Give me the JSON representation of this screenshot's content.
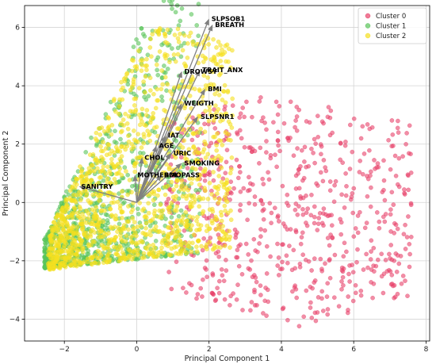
{
  "chart_data": {
    "type": "scatter",
    "title": "",
    "xlabel": "Principal Component 1",
    "ylabel": "Principal Component 2",
    "xlim": [
      -3.1,
      8.1
    ],
    "ylim": [
      -4.75,
      6.75
    ],
    "xticks": [
      -2,
      0,
      2,
      4,
      6,
      8
    ],
    "yticks": [
      -4,
      -2,
      0,
      2,
      4,
      6
    ],
    "grid": true,
    "legend_position": "top-right",
    "series": [
      {
        "name": "Cluster 0",
        "color": "#e8436b",
        "approx_count": 650,
        "center": [
          3.4,
          -1.4
        ],
        "x_range": [
          0.8,
          7.6
        ],
        "y_range": [
          -4.3,
          3.7
        ]
      },
      {
        "name": "Cluster 1",
        "color": "#5ac45a",
        "approx_count": 900,
        "center": [
          -0.9,
          -0.2
        ],
        "x_range": [
          -2.6,
          1.8
        ],
        "y_range": [
          -2.2,
          6.2
        ]
      },
      {
        "name": "Cluster 2",
        "color": "#f5e020",
        "approx_count": 1300,
        "center": [
          -0.5,
          0.6
        ],
        "x_range": [
          -2.4,
          2.7
        ],
        "y_range": [
          -2.3,
          5.9
        ]
      }
    ],
    "loading_vectors": {
      "origin": [
        0,
        0
      ],
      "color": "#808080",
      "vectors": [
        {
          "label": "SLPSOB1",
          "x": 2.0,
          "y": 6.3
        },
        {
          "label": "BREATH",
          "x": 2.1,
          "y": 6.1
        },
        {
          "label": "DROWSY",
          "x": 1.25,
          "y": 4.5
        },
        {
          "label": "TRAIT_ANX",
          "x": 1.75,
          "y": 4.55
        },
        {
          "label": "BMI",
          "x": 1.9,
          "y": 3.9
        },
        {
          "label": "WEIGTH",
          "x": 1.25,
          "y": 3.4
        },
        {
          "label": "SLPSNR1",
          "x": 1.7,
          "y": 2.95
        },
        {
          "label": "IAT",
          "x": 0.8,
          "y": 2.3
        },
        {
          "label": "AGE",
          "x": 0.55,
          "y": 1.95
        },
        {
          "label": "URIC",
          "x": 0.95,
          "y": 1.7
        },
        {
          "label": "CHOL",
          "x": 0.15,
          "y": 1.55
        },
        {
          "label": "SMOKING",
          "x": 1.25,
          "y": 1.35
        },
        {
          "label": "SMOPASS",
          "x": 0.7,
          "y": 0.95
        },
        {
          "label": "MOTHERDL",
          "x": -0.05,
          "y": 0.95
        },
        {
          "label": "SANITRY",
          "x": -1.6,
          "y": 0.55
        }
      ]
    }
  }
}
